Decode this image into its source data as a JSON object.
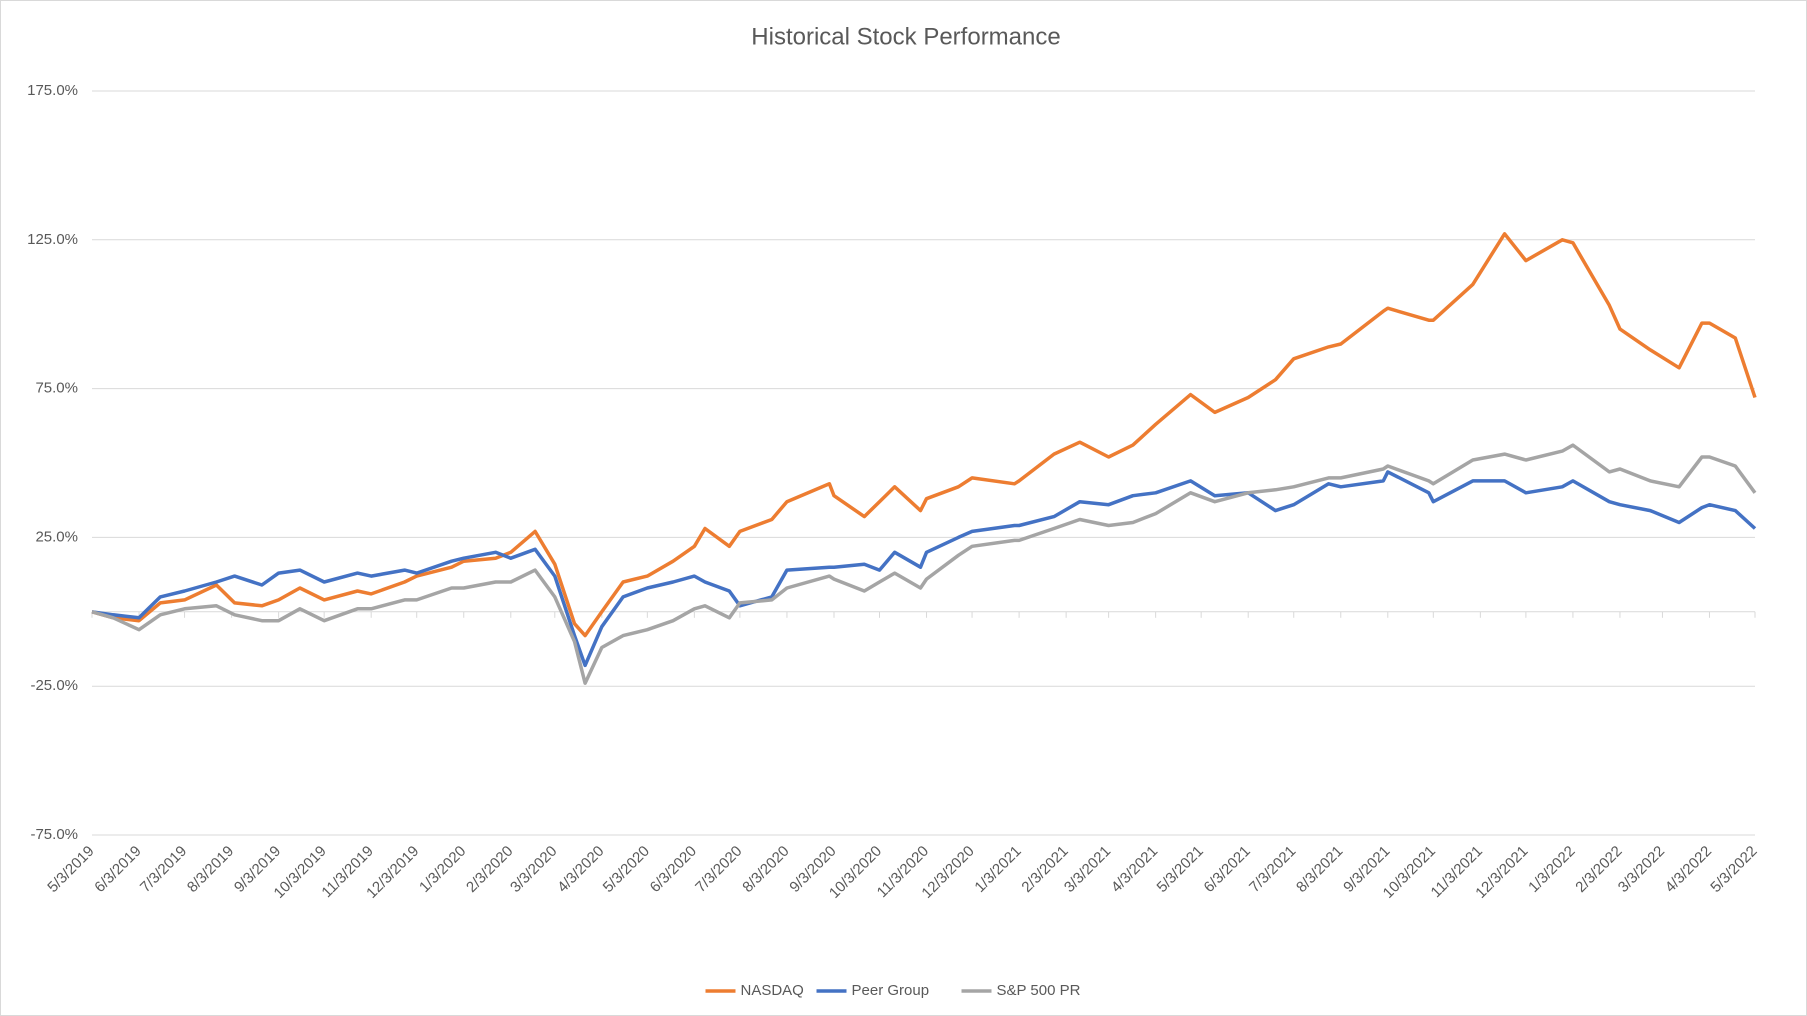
{
  "chart_data": {
    "type": "line",
    "title": "Historical Stock Performance",
    "x": [
      "5/3/2019",
      "5/17/2019",
      "6/3/2019",
      "6/17/2019",
      "7/3/2019",
      "7/24/2019",
      "8/5/2019",
      "8/23/2019",
      "9/3/2019",
      "9/17/2019",
      "10/3/2019",
      "10/25/2019",
      "11/3/2019",
      "11/25/2019",
      "12/3/2019",
      "12/26/2019",
      "1/3/2020",
      "1/24/2020",
      "2/3/2020",
      "2/19/2020",
      "3/3/2020",
      "3/16/2020",
      "3/23/2020",
      "4/3/2020",
      "4/17/2020",
      "5/3/2020",
      "5/20/2020",
      "6/3/2020",
      "6/10/2020",
      "6/26/2020",
      "7/3/2020",
      "7/24/2020",
      "8/3/2020",
      "8/31/2020",
      "9/3/2020",
      "9/23/2020",
      "10/3/2020",
      "10/13/2020",
      "10/30/2020",
      "11/3/2020",
      "11/24/2020",
      "12/3/2020",
      "12/31/2020",
      "1/3/2021",
      "1/26/2021",
      "2/12/2021",
      "3/3/2021",
      "3/19/2021",
      "4/3/2021",
      "4/26/2021",
      "5/12/2021",
      "6/3/2021",
      "6/21/2021",
      "7/3/2021",
      "7/26/2021",
      "8/3/2021",
      "8/31/2021",
      "9/3/2021",
      "9/30/2021",
      "10/3/2021",
      "10/29/2021",
      "11/19/2021",
      "12/3/2021",
      "12/27/2021",
      "1/3/2022",
      "1/27/2022",
      "2/3/2022",
      "2/23/2022",
      "3/14/2022",
      "3/29/2022",
      "4/3/2022",
      "4/20/2022",
      "5/3/2022"
    ],
    "series": [
      {
        "name": "NASDAQ",
        "color": "#ed7d31",
        "values": [
          0,
          -2,
          -3,
          3,
          4,
          9,
          3,
          2,
          4,
          8,
          4,
          7,
          6,
          10,
          12,
          15,
          17,
          18,
          20,
          27,
          16,
          -4,
          -8,
          0,
          10,
          12,
          17,
          22,
          28,
          22,
          27,
          31,
          37,
          43,
          39,
          32,
          37,
          42,
          34,
          38,
          42,
          45,
          43,
          44,
          53,
          57,
          52,
          56,
          63,
          73,
          67,
          72,
          78,
          85,
          89,
          90,
          101,
          102,
          98,
          98,
          110,
          127,
          118,
          125,
          124,
          103,
          95,
          88,
          82,
          97,
          97,
          92,
          72
        ]
      },
      {
        "name": "Peer Group",
        "color": "#4472c4",
        "values": [
          0,
          -1,
          -2,
          5,
          7,
          10,
          12,
          9,
          13,
          14,
          10,
          13,
          12,
          14,
          13,
          17,
          18,
          20,
          18,
          21,
          12,
          -8,
          -18,
          -5,
          5,
          8,
          10,
          12,
          10,
          7,
          2,
          5,
          14,
          15,
          15,
          16,
          14,
          20,
          15,
          20,
          25,
          27,
          29,
          29,
          32,
          37,
          36,
          39,
          40,
          44,
          39,
          40,
          34,
          36,
          43,
          42,
          44,
          47,
          40,
          37,
          44,
          44,
          40,
          42,
          44,
          37,
          36,
          34,
          30,
          35,
          36,
          34,
          28
        ]
      },
      {
        "name": "S&P 500 PR",
        "color": "#a5a5a5",
        "values": [
          0,
          -2,
          -6,
          -1,
          1,
          2,
          -1,
          -3,
          -3,
          1,
          -3,
          1,
          1,
          4,
          4,
          8,
          8,
          10,
          10,
          14,
          5,
          -10,
          -24,
          -12,
          -8,
          -6,
          -3,
          1,
          2,
          -2,
          3,
          4,
          8,
          12,
          11,
          7,
          10,
          13,
          8,
          11,
          19,
          22,
          24,
          24,
          28,
          31,
          29,
          30,
          33,
          40,
          37,
          40,
          41,
          42,
          45,
          45,
          48,
          49,
          44,
          43,
          51,
          53,
          51,
          54,
          56,
          47,
          48,
          44,
          42,
          52,
          52,
          49,
          40
        ]
      }
    ],
    "xlim": [
      "5/3/2019",
      "5/3/2022"
    ],
    "xticks": [
      "5/3/2019",
      "6/3/2019",
      "7/3/2019",
      "8/3/2019",
      "9/3/2019",
      "10/3/2019",
      "11/3/2019",
      "12/3/2019",
      "1/3/2020",
      "2/3/2020",
      "3/3/2020",
      "4/3/2020",
      "5/3/2020",
      "6/3/2020",
      "7/3/2020",
      "8/3/2020",
      "9/3/2020",
      "10/3/2020",
      "11/3/2020",
      "12/3/2020",
      "1/3/2021",
      "2/3/2021",
      "3/3/2021",
      "4/3/2021",
      "5/3/2021",
      "6/3/2021",
      "7/3/2021",
      "8/3/2021",
      "9/3/2021",
      "10/3/2021",
      "11/3/2021",
      "12/3/2021",
      "1/3/2022",
      "2/3/2022",
      "3/3/2022",
      "4/3/2022",
      "5/3/2022"
    ],
    "ylim": [
      -75,
      175
    ],
    "yticks": [
      {
        "value": -75,
        "label": "-75.0%"
      },
      {
        "value": -25,
        "label": "-25.0%"
      },
      {
        "value": 25,
        "label": "25.0%"
      },
      {
        "value": 75,
        "label": "75.0%"
      },
      {
        "value": 125,
        "label": "125.0%"
      },
      {
        "value": 175,
        "label": "175.0%"
      }
    ],
    "grid": true,
    "legend": "bottom"
  }
}
